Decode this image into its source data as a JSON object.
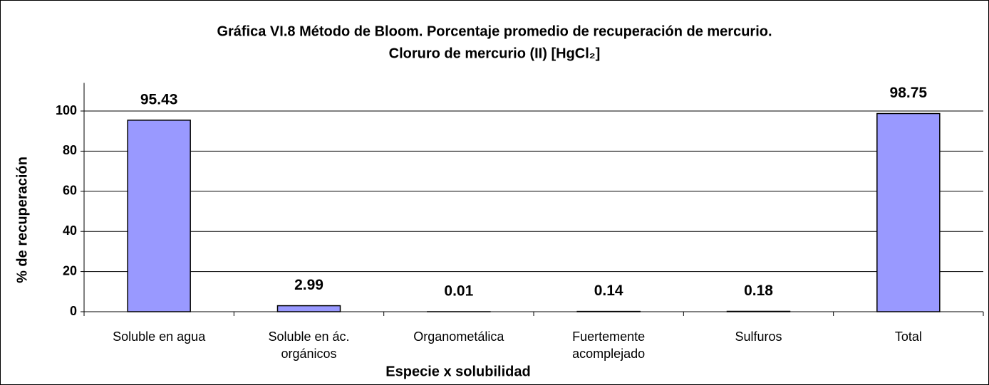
{
  "chart_data": {
    "type": "bar",
    "title": [
      "Gráfica VI.8 Método de Bloom. Porcentaje promedio de recuperación de mercurio.",
      "Cloruro de mercurio (II) [HgCl₂]"
    ],
    "x_label": "Especie x solubilidad",
    "y_label": "% de recuperación",
    "categories": [
      [
        "Soluble en agua"
      ],
      [
        "Soluble en ác.",
        "orgánicos"
      ],
      [
        "Organometálica"
      ],
      [
        "Fuertemente",
        "acomplejado"
      ],
      [
        "Sulfuros"
      ],
      [
        "Total"
      ]
    ],
    "values": [
      95.43,
      2.99,
      0.01,
      0.14,
      0.18,
      98.75
    ],
    "color": "#9999ff",
    "ylim": [
      0,
      114
    ],
    "yticks": [
      0,
      20,
      40,
      60,
      80,
      100
    ],
    "grid": true
  }
}
